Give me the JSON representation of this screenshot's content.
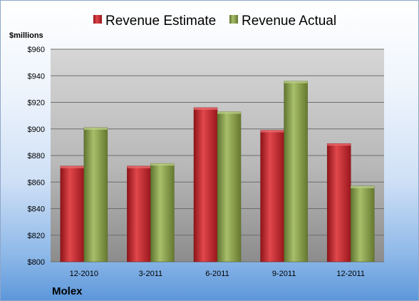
{
  "chart_data": {
    "type": "bar",
    "categories": [
      "12-2010",
      "3-2011",
      "6-2011",
      "9-2011",
      "12-2011"
    ],
    "series": [
      {
        "name": "Revenue Estimate",
        "values": [
          872,
          872,
          916,
          899,
          889
        ]
      },
      {
        "name": "Revenue Actual",
        "values": [
          901,
          874,
          913,
          936,
          857
        ]
      }
    ],
    "ylabel": "$millions",
    "ylim": [
      800,
      960
    ],
    "yticks": [
      "$800",
      "$820",
      "$840",
      "$860",
      "$880",
      "$900",
      "$920",
      "$940",
      "$960"
    ],
    "ytick_values": [
      800,
      820,
      840,
      860,
      880,
      900,
      920,
      940,
      960
    ],
    "grid": true,
    "legend_position": "top",
    "colors": {
      "estimate": "#c0282d",
      "actual": "#8aa24a"
    }
  },
  "company": "Molex"
}
